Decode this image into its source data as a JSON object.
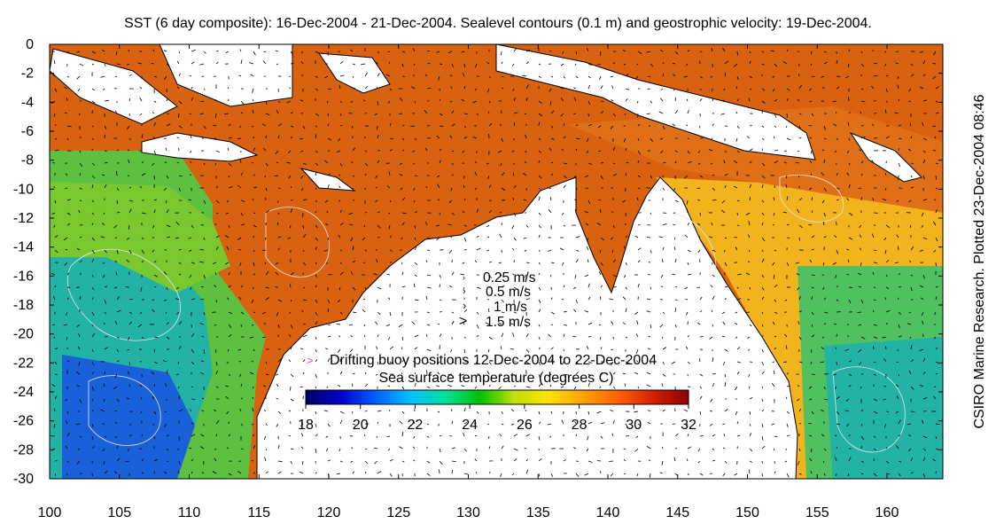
{
  "title": "SST (6 day composite): 16-Dec-2004 - 21-Dec-2004. Sealevel contours (0.1 m) and geostrophic velocity: 19-Dec-2004.",
  "side_label": "CSIRO Marine Research. Plotted 23-Dec-2004 08:46",
  "axes": {
    "lon_ticks": [
      "100",
      "105",
      "110",
      "115",
      "120",
      "125",
      "130",
      "135",
      "140",
      "145",
      "150",
      "155",
      "160"
    ],
    "lat_ticks": [
      "0",
      "-2",
      "-4",
      "-6",
      "-8",
      "-10",
      "-12",
      "-14",
      "-16",
      "-18",
      "-20",
      "-22",
      "-24",
      "-26",
      "-28",
      "-30"
    ],
    "lon_range": [
      100,
      164
    ],
    "lat_range": [
      -30,
      0
    ]
  },
  "velocity_legend": [
    "0.25 m/s",
    "0.5 m/s",
    "1 m/s",
    "1.5 m/s"
  ],
  "buoy_legend": {
    "symbol": ">",
    "label": "Drifting buoy positions 12-Dec-2004 to 22-Dec-2004",
    "color": "#e040e0"
  },
  "colorbar": {
    "label": "Sea surface temperature (degrees C)",
    "ticks": [
      "18",
      "20",
      "22",
      "24",
      "26",
      "28",
      "30",
      "32"
    ],
    "range": [
      18,
      32
    ],
    "colors": [
      "#00005f",
      "#0000c8",
      "#0060ff",
      "#00c0ff",
      "#00e0a0",
      "#00c000",
      "#c0e000",
      "#ffe000",
      "#ffa000",
      "#ff6000",
      "#d02000",
      "#900000"
    ]
  },
  "colors": {
    "land": "#ffffff",
    "warm_sea": "#d8620f",
    "cool_sea": "#1fb0a0",
    "coast": "#000000",
    "contour": "#e6e6e6"
  }
}
